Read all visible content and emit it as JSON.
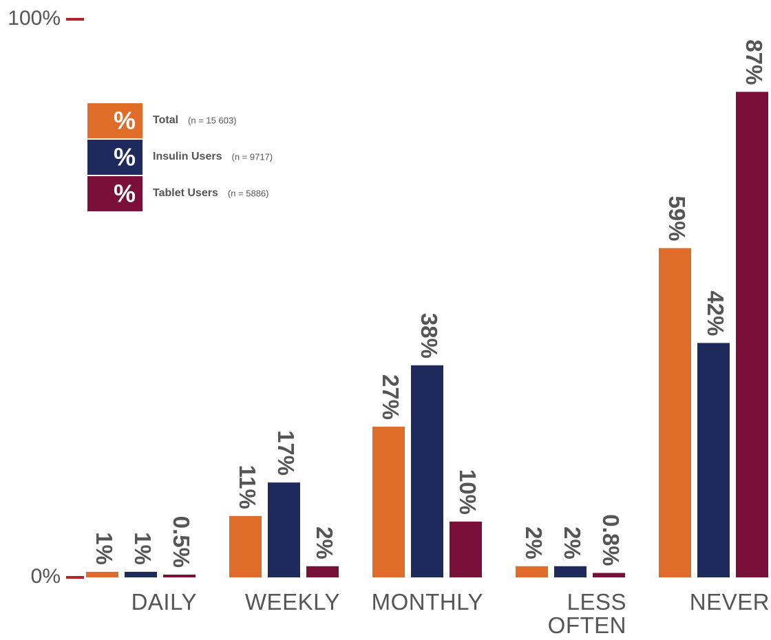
{
  "chart_data": {
    "type": "bar",
    "categories": [
      "DAILY",
      "WEEKLY",
      "MONTHLY",
      "LESS OFTEN",
      "NEVER"
    ],
    "legend_symbol": "%",
    "series": [
      {
        "name": "Total",
        "n_label": "(n = 15 603)",
        "color": "#e06c2a",
        "values": [
          1,
          11,
          27,
          2,
          59
        ],
        "value_labels": [
          "1%",
          "11%",
          "27%",
          "2%",
          "59%"
        ]
      },
      {
        "name": "Insulin Users",
        "n_label": "(n = 9717)",
        "color": "#1f2a5c",
        "values": [
          1,
          17,
          38,
          2,
          42
        ],
        "value_labels": [
          "1%",
          "17%",
          "38%",
          "2%",
          "42%"
        ]
      },
      {
        "name": "Tablet Users",
        "n_label": "(n = 5886)",
        "color": "#7a0f3a",
        "values": [
          0.5,
          2,
          10,
          0.8,
          87
        ],
        "value_labels": [
          "0.5%",
          "2%",
          "10%",
          "0.8%",
          "87%"
        ]
      }
    ],
    "ylim": [
      0,
      100
    ],
    "yticks": [
      {
        "value": 0,
        "label": "0%"
      },
      {
        "value": 100,
        "label": "100%"
      }
    ],
    "tick_color": "#b5202a",
    "legend": "upper left"
  }
}
